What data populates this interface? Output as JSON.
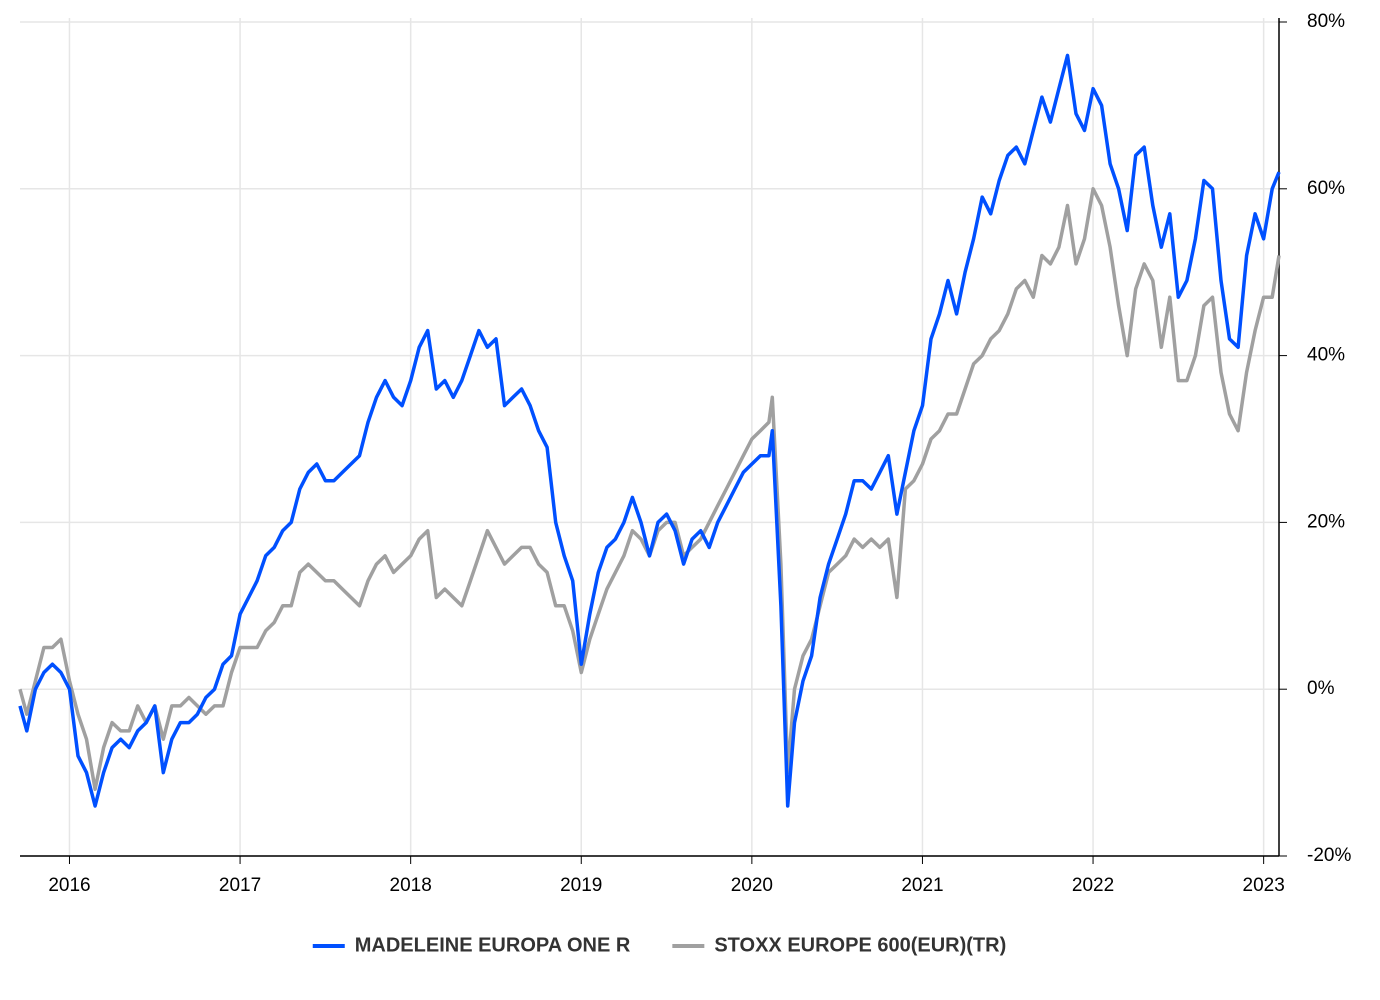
{
  "chart_data": {
    "type": "line",
    "x": [
      2015.71,
      2015.75,
      2015.8,
      2015.85,
      2015.9,
      2015.95,
      2016.0,
      2016.05,
      2016.1,
      2016.15,
      2016.2,
      2016.25,
      2016.3,
      2016.35,
      2016.4,
      2016.45,
      2016.5,
      2016.55,
      2016.6,
      2016.65,
      2016.7,
      2016.75,
      2016.8,
      2016.85,
      2016.9,
      2016.95,
      2017.0,
      2017.05,
      2017.1,
      2017.15,
      2017.2,
      2017.25,
      2017.3,
      2017.35,
      2017.4,
      2017.45,
      2017.5,
      2017.55,
      2017.6,
      2017.65,
      2017.7,
      2017.75,
      2017.8,
      2017.85,
      2017.9,
      2017.95,
      2018.0,
      2018.05,
      2018.1,
      2018.15,
      2018.2,
      2018.25,
      2018.3,
      2018.35,
      2018.4,
      2018.45,
      2018.5,
      2018.55,
      2018.6,
      2018.65,
      2018.7,
      2018.75,
      2018.8,
      2018.85,
      2018.9,
      2018.95,
      2019.0,
      2019.05,
      2019.1,
      2019.15,
      2019.2,
      2019.25,
      2019.3,
      2019.35,
      2019.4,
      2019.45,
      2019.5,
      2019.55,
      2019.6,
      2019.65,
      2019.7,
      2019.75,
      2019.8,
      2019.85,
      2019.9,
      2019.95,
      2020.0,
      2020.05,
      2020.1,
      2020.12,
      2020.17,
      2020.21,
      2020.25,
      2020.3,
      2020.35,
      2020.4,
      2020.45,
      2020.5,
      2020.55,
      2020.6,
      2020.65,
      2020.7,
      2020.75,
      2020.8,
      2020.85,
      2020.9,
      2020.95,
      2021.0,
      2021.05,
      2021.1,
      2021.15,
      2021.2,
      2021.25,
      2021.3,
      2021.35,
      2021.4,
      2021.45,
      2021.5,
      2021.55,
      2021.6,
      2021.65,
      2021.7,
      2021.75,
      2021.8,
      2021.85,
      2021.9,
      2021.95,
      2022.0,
      2022.05,
      2022.1,
      2022.15,
      2022.2,
      2022.25,
      2022.3,
      2022.35,
      2022.4,
      2022.45,
      2022.5,
      2022.55,
      2022.6,
      2022.65,
      2022.7,
      2022.75,
      2022.8,
      2022.85,
      2022.9,
      2022.95,
      2023.0,
      2023.05,
      2023.09
    ],
    "series": [
      {
        "name": "MADELEINE EUROPA ONE R",
        "color": "#0050ff",
        "values": [
          -2,
          -5,
          0,
          2,
          3,
          2,
          0,
          -8,
          -10,
          -14,
          -10,
          -7,
          -6,
          -7,
          -5,
          -4,
          -2,
          -10,
          -6,
          -4,
          -4,
          -3,
          -1,
          0,
          3,
          4,
          9,
          11,
          13,
          16,
          17,
          19,
          20,
          24,
          26,
          27,
          25,
          25,
          26,
          27,
          28,
          32,
          35,
          37,
          35,
          34,
          37,
          41,
          43,
          36,
          37,
          35,
          37,
          40,
          43,
          41,
          42,
          34,
          35,
          36,
          34,
          31,
          29,
          20,
          16,
          13,
          3,
          9,
          14,
          17,
          18,
          20,
          23,
          20,
          16,
          20,
          21,
          19,
          15,
          18,
          19,
          17,
          20,
          22,
          24,
          26,
          27,
          28,
          28,
          31,
          10,
          -14,
          -4,
          1,
          4,
          11,
          15,
          18,
          21,
          25,
          25,
          24,
          26,
          28,
          21,
          26,
          31,
          34,
          42,
          45,
          49,
          45,
          50,
          54,
          59,
          57,
          61,
          64,
          65,
          63,
          67,
          71,
          68,
          72,
          76,
          69,
          67,
          72,
          70,
          63,
          60,
          55,
          64,
          65,
          58,
          53,
          57,
          47,
          49,
          54,
          61,
          60,
          49,
          42,
          41,
          52,
          57,
          54,
          60,
          62
        ]
      },
      {
        "name": "STOXX EUROPE 600(EUR)(TR)",
        "color": "#a0a0a0",
        "values": [
          0,
          -3,
          1,
          5,
          5,
          6,
          1,
          -3,
          -6,
          -12,
          -7,
          -4,
          -5,
          -5,
          -2,
          -4,
          -2,
          -6,
          -2,
          -2,
          -1,
          -2,
          -3,
          -2,
          -2,
          2,
          5,
          5,
          5,
          7,
          8,
          10,
          10,
          14,
          15,
          14,
          13,
          13,
          12,
          11,
          10,
          13,
          15,
          16,
          14,
          15,
          16,
          18,
          19,
          11,
          12,
          11,
          10,
          13,
          16,
          19,
          17,
          15,
          16,
          17,
          17,
          15,
          14,
          10,
          10,
          7,
          2,
          6,
          9,
          12,
          14,
          16,
          19,
          18,
          16,
          19,
          20,
          20,
          16,
          17,
          18,
          20,
          22,
          24,
          26,
          28,
          30,
          31,
          32,
          35,
          15,
          -10,
          0,
          4,
          6,
          10,
          14,
          15,
          16,
          18,
          17,
          18,
          17,
          18,
          11,
          24,
          25,
          27,
          30,
          31,
          33,
          33,
          36,
          39,
          40,
          42,
          43,
          45,
          48,
          49,
          47,
          52,
          51,
          53,
          58,
          51,
          54,
          60,
          58,
          53,
          46,
          40,
          48,
          51,
          49,
          41,
          47,
          37,
          37,
          40,
          46,
          47,
          38,
          33,
          31,
          38,
          43,
          47,
          47,
          52
        ]
      }
    ],
    "xlim": [
      2015.71,
      2023.09
    ],
    "xticks": [
      2016,
      2017,
      2018,
      2019,
      2020,
      2021,
      2022,
      2023
    ],
    "ylim": [
      -20,
      80
    ],
    "yticks": [
      {
        "value": -20,
        "label": "-20%"
      },
      {
        "value": 0,
        "label": "0%"
      },
      {
        "value": 20,
        "label": "20%"
      },
      {
        "value": 40,
        "label": "40%"
      },
      {
        "value": 60,
        "label": "60%"
      },
      {
        "value": 80,
        "label": "80%"
      }
    ],
    "grid": true,
    "legend": "bottom"
  }
}
